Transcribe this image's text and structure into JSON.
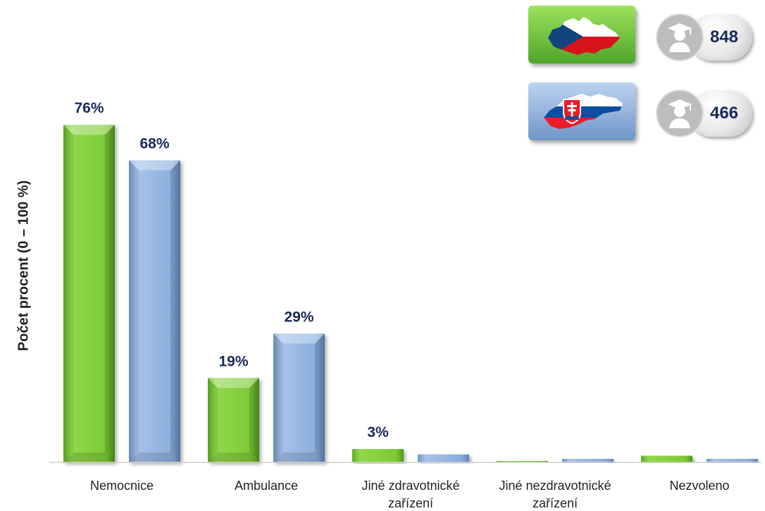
{
  "chart_data": {
    "type": "bar",
    "title": "",
    "xlabel": "",
    "ylabel": "Počet procent  (0 – 100 %)",
    "ylim": [
      0,
      100
    ],
    "grid": false,
    "categories": [
      [
        "Nemocnice"
      ],
      [
        "Ambulance"
      ],
      [
        "Jiné zdravotnické",
        "zařízení"
      ],
      [
        "Jiné nezdravotnické",
        "zařízení"
      ],
      [
        "Nezvoleno"
      ]
    ],
    "series": [
      {
        "color": "#7dcf3a",
        "values": [
          76,
          19,
          3,
          0.3,
          1.5
        ],
        "labels": [
          "76%",
          "19%",
          "3%",
          "",
          ""
        ]
      },
      {
        "color": "#93b6e3",
        "values": [
          68,
          29,
          1.8,
          0.8,
          0.8
        ],
        "labels": [
          "68%",
          "29%",
          "",
          "",
          ""
        ]
      }
    ]
  },
  "legend": {
    "items": [
      {
        "icon": "czech-republic-map-icon",
        "count": "848",
        "color": "#6cc63a"
      },
      {
        "icon": "slovakia-map-icon",
        "count": "466",
        "color": "#8fb2de"
      }
    ]
  }
}
